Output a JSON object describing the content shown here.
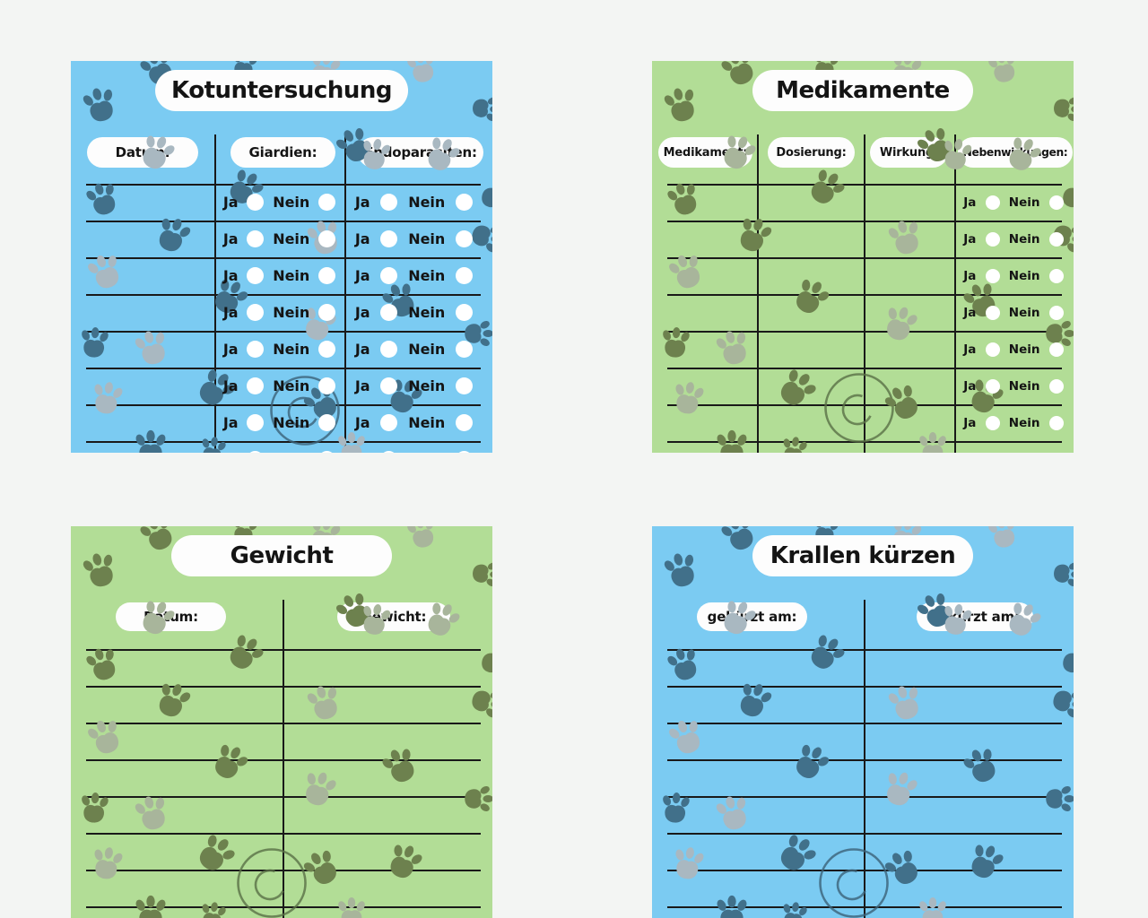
{
  "page": {
    "background": "#f3f5f3"
  },
  "labels": {
    "yes": "Ja",
    "no": "Nein"
  },
  "cards": [
    {
      "id": "kotuntersuchung",
      "title": "Kotuntersuchung",
      "theme": "blue",
      "columns": [
        {
          "label": "Datum:"
        },
        {
          "label": "Giardien:",
          "has_yes_no": true
        },
        {
          "label": "Endoparasiten:",
          "has_yes_no": true
        }
      ],
      "rows": 8
    },
    {
      "id": "medikamente",
      "title": "Medikamente",
      "theme": "green",
      "columns": [
        {
          "label": "Medikament:"
        },
        {
          "label": "Dosierung:"
        },
        {
          "label": "Wirkung:"
        },
        {
          "label": "Nebenwirkungen:",
          "has_yes_no": true
        }
      ],
      "rows": 8
    },
    {
      "id": "gewicht",
      "title": "Gewicht",
      "theme": "green",
      "columns": [
        {
          "label": "Datum:"
        },
        {
          "label": "Gewicht:"
        }
      ],
      "rows": 8
    },
    {
      "id": "krallen-kuerzen",
      "title": "Krallen kürzen",
      "theme": "blue",
      "columns": [
        {
          "label": "gekürzt am:"
        },
        {
          "label": "gekürzt am:"
        }
      ],
      "rows": 8
    }
  ],
  "colors": {
    "page_background": "#f3f5f3",
    "blue_card": "#7bcbf2",
    "green_card": "#b2dd96",
    "pill_background": "#fdfdfd",
    "table_line": "#191919",
    "text": "#141414",
    "radio_circle": "#ffffff",
    "paw_dark_on_blue": "#41708a",
    "paw_light_on_blue": "#a9b8c1",
    "paw_dark_on_green": "#6d814e",
    "paw_light_on_green": "#a8b59b",
    "watermark_on_blue": "#3c637a",
    "watermark_on_green": "#5a7147"
  },
  "icons": {
    "paw": "paw-icon",
    "watermark": "circle-c-watermark-icon"
  }
}
